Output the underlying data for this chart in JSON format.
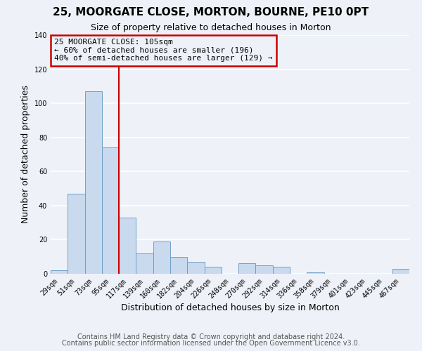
{
  "title": "25, MOORGATE CLOSE, MORTON, BOURNE, PE10 0PT",
  "subtitle": "Size of property relative to detached houses in Morton",
  "xlabel": "Distribution of detached houses by size in Morton",
  "ylabel": "Number of detached properties",
  "footnote1": "Contains HM Land Registry data © Crown copyright and database right 2024.",
  "footnote2": "Contains public sector information licensed under the Open Government Licence v3.0.",
  "bar_labels": [
    "29sqm",
    "51sqm",
    "73sqm",
    "95sqm",
    "117sqm",
    "139sqm",
    "160sqm",
    "182sqm",
    "204sqm",
    "226sqm",
    "248sqm",
    "270sqm",
    "292sqm",
    "314sqm",
    "336sqm",
    "358sqm",
    "379sqm",
    "401sqm",
    "423sqm",
    "445sqm",
    "467sqm"
  ],
  "bar_values": [
    2,
    47,
    107,
    74,
    33,
    12,
    19,
    10,
    7,
    4,
    0,
    6,
    5,
    4,
    0,
    1,
    0,
    0,
    0,
    0,
    3
  ],
  "bar_color": "#c9d9ee",
  "bar_edge_color": "#6fa0c8",
  "ylim": [
    0,
    140
  ],
  "yticks": [
    0,
    20,
    40,
    60,
    80,
    100,
    120,
    140
  ],
  "vline_x_index": 3.5,
  "vline_color": "#cc0000",
  "annotation_line1": "25 MOORGATE CLOSE: 105sqm",
  "annotation_line2": "← 60% of detached houses are smaller (196)",
  "annotation_line3": "40% of semi-detached houses are larger (129) →",
  "annotation_box_color": "#cc0000",
  "background_color": "#eef2f8",
  "grid_color": "#ffffff",
  "title_fontsize": 11,
  "subtitle_fontsize": 9,
  "axis_label_fontsize": 9,
  "tick_fontsize": 7,
  "footnote_fontsize": 7
}
